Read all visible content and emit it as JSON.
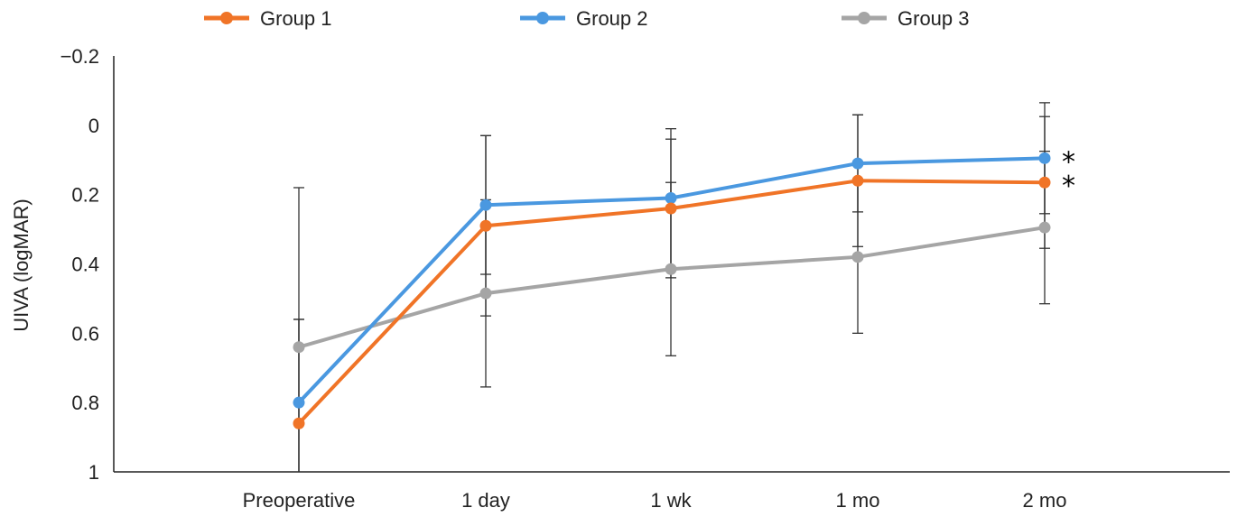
{
  "chart_data": {
    "type": "line",
    "title": "",
    "xlabel": "",
    "ylabel": "UIVA (logMAR)",
    "ylim": [
      1,
      -0.2
    ],
    "y_inverted": true,
    "y_ticks": [
      -0.2,
      0,
      0.2,
      0.4,
      0.6,
      0.8,
      1
    ],
    "y_tick_labels": [
      "−0.2",
      "0",
      "0.2",
      "0.4",
      "0.6",
      "0.8",
      "1"
    ],
    "categories": [
      "Preoperative",
      "1 day",
      "1 wk",
      "1 mo",
      "2 mo"
    ],
    "grid": false,
    "legend_position": "top",
    "series": [
      {
        "name": "Group 1",
        "color": "#F07427",
        "values": [
          0.86,
          0.29,
          0.24,
          0.16,
          0.165
        ],
        "error": [
          0.3,
          0.26,
          0.2,
          0.19,
          0.19
        ],
        "annotation": "*"
      },
      {
        "name": "Group 2",
        "color": "#4A98E0",
        "values": [
          0.8,
          0.23,
          0.21,
          0.11,
          0.095
        ],
        "error": [
          0.24,
          0.2,
          0.2,
          0.14,
          0.16
        ],
        "annotation": "*"
      },
      {
        "name": "Group 3",
        "color": "#A5A5A5",
        "values": [
          0.64,
          0.485,
          0.415,
          0.38,
          0.295
        ],
        "error": [
          0.46,
          0.27,
          0.25,
          0.22,
          0.22
        ],
        "annotation": ""
      }
    ]
  }
}
